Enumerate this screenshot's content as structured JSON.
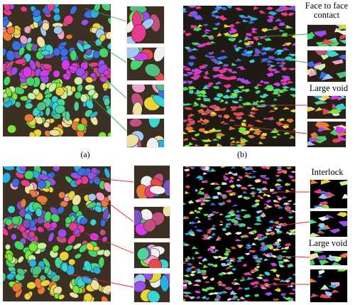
{
  "figure": {
    "panel_a": {
      "caption": "(a)"
    },
    "panel_b": {
      "caption": "(b)",
      "annotations": [
        "Face to face contact",
        "Large void"
      ]
    },
    "panel_c": {
      "caption": ""
    },
    "panel_d": {
      "caption": "",
      "annotations": [
        "Interlock",
        "Large void"
      ]
    }
  },
  "colors": {
    "connector_green": "#2fa84a",
    "connector_red": "#d9262b",
    "background_dark": "#3c2f24",
    "background_black": "#000000"
  }
}
